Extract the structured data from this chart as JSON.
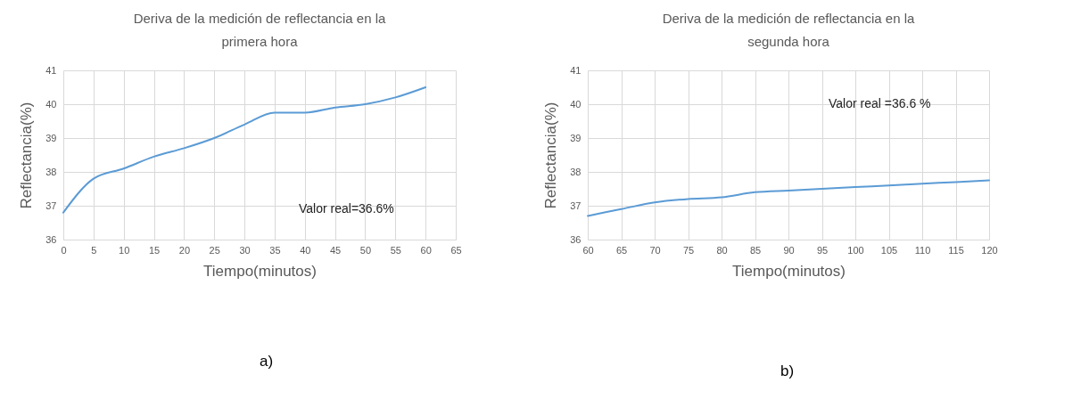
{
  "chart_data": [
    {
      "type": "line",
      "title": "Deriva de la medición de reflectancia en la primera hora",
      "xlabel": "Tiempo(minutos)",
      "ylabel": "Reflectancia(%)",
      "annotations": [
        "Valor real=36.6%",
        "a)"
      ],
      "x": [
        0,
        5,
        10,
        15,
        20,
        25,
        30,
        35,
        40,
        45,
        50,
        55,
        60
      ],
      "series": [
        {
          "color": "#5b9bd5",
          "values": [
            36.8,
            37.8,
            38.1,
            38.45,
            38.7,
            39.0,
            39.4,
            39.75,
            39.75,
            39.9,
            40.0,
            40.2,
            40.5
          ]
        }
      ],
      "xlim": [
        0,
        65
      ],
      "xticks": [
        0,
        5,
        10,
        15,
        20,
        25,
        30,
        35,
        40,
        45,
        50,
        55,
        60,
        65
      ],
      "ylim": [
        36,
        41
      ],
      "yticks": [
        36,
        37,
        38,
        39,
        40,
        41
      ],
      "grid": true
    },
    {
      "type": "line",
      "title": "Deriva de la medición de reflectancia en la segunda hora",
      "xlabel": "Tiempo(minutos)",
      "ylabel": "Reflectancia(%)",
      "annotations": [
        "Valor real =36.6 %",
        "b)"
      ],
      "x": [
        60,
        65,
        70,
        75,
        80,
        85,
        90,
        95,
        100,
        105,
        110,
        115,
        120
      ],
      "series": [
        {
          "color": "#5b9bd5",
          "values": [
            36.7,
            36.9,
            37.1,
            37.2,
            37.25,
            37.4,
            37.45,
            37.5,
            37.55,
            37.6,
            37.65,
            37.7,
            37.75
          ]
        }
      ],
      "xlim": [
        60,
        120
      ],
      "xticks": [
        60,
        65,
        70,
        75,
        80,
        85,
        90,
        95,
        100,
        105,
        110,
        115,
        120
      ],
      "ylim": [
        36,
        41
      ],
      "yticks": [
        36,
        37,
        38,
        39,
        40,
        41
      ],
      "grid": true
    }
  ]
}
